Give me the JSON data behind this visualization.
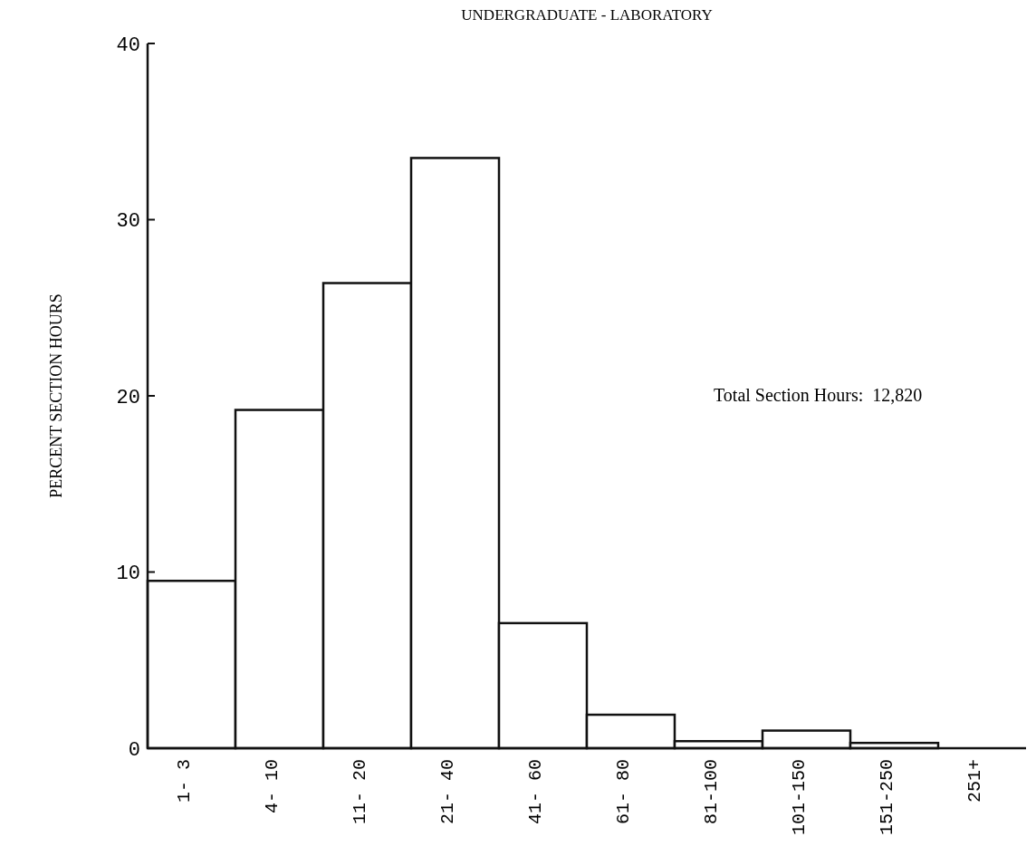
{
  "chart_data": {
    "type": "bar",
    "title": "UNDERGRADUATE - LABORATORY",
    "ylabel": "PERCENT SECTION HOURS",
    "categories": [
      "1- 3",
      "4- 10",
      "11- 20",
      "21- 40",
      "41- 60",
      "61- 80",
      "81-100",
      "101-150",
      "151-250",
      "251+"
    ],
    "values": [
      9.5,
      19.2,
      26.4,
      33.5,
      7.1,
      1.9,
      0.4,
      1.0,
      0.3,
      0
    ],
    "color": "#ffffff",
    "ylim": [
      0,
      40
    ],
    "yticks": [
      0,
      10,
      20,
      30,
      40
    ],
    "annotations": [
      "Total Section Hours:  12,820"
    ]
  }
}
